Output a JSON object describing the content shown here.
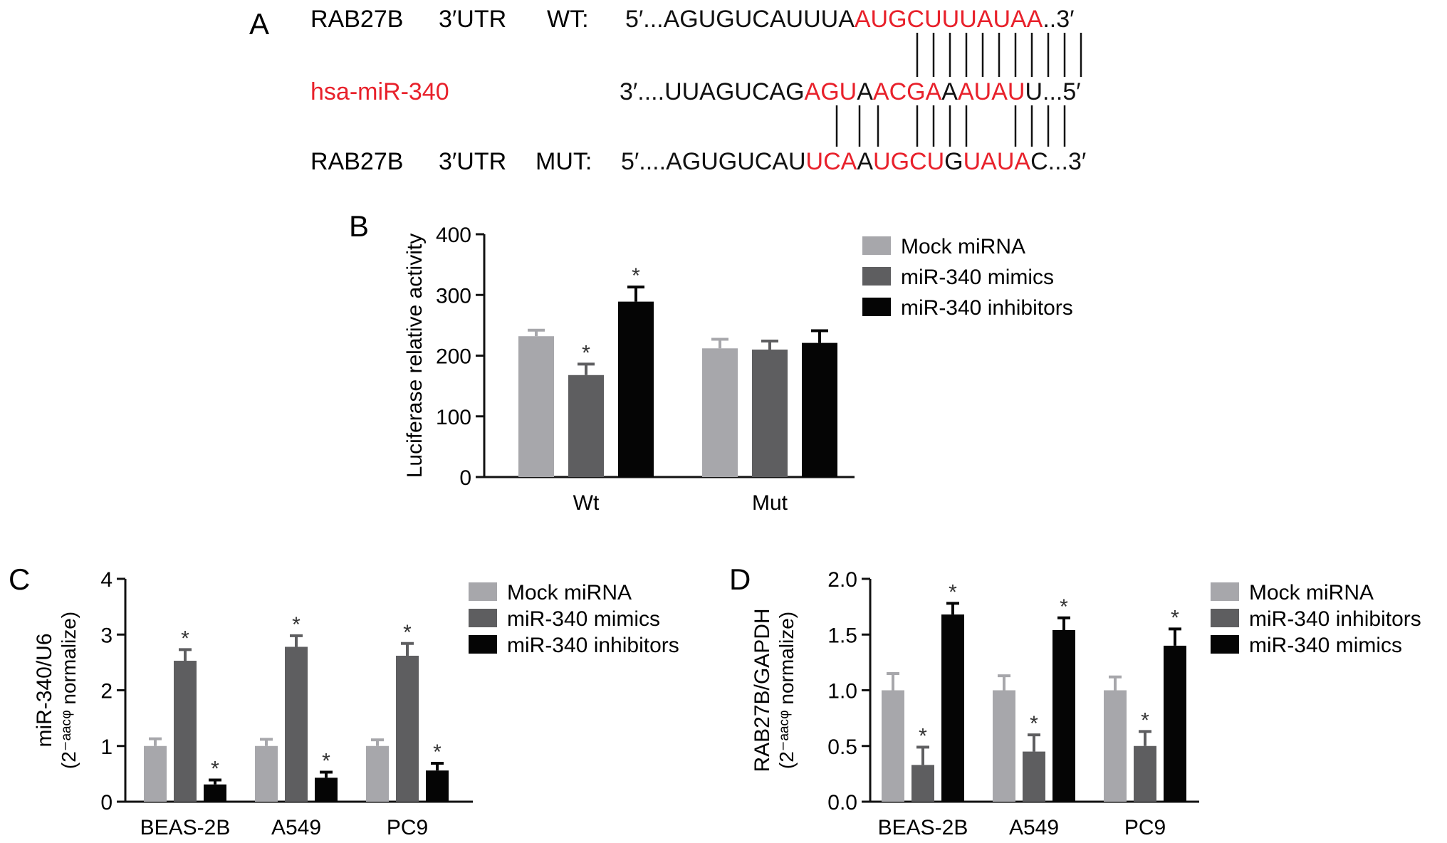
{
  "panel_a": {
    "letter": "A",
    "wt_label": {
      "gene": "RAB27B",
      "region": "3′UTR",
      "kind": "WT:"
    },
    "mirna_label": "hsa-miR-340",
    "mut_label": {
      "gene": "RAB27B",
      "region": "3′UTR",
      "kind": "MUT:"
    },
    "wt_seq": [
      {
        "t": "5′...AGUGUCAUUUA",
        "red": false
      },
      {
        "t": "AUGCUUUAUAA",
        "red": true
      },
      {
        "t": "..3′",
        "red": false
      }
    ],
    "mir_seq": [
      {
        "t": "3′....UUAGUCAG",
        "red": false
      },
      {
        "t": "AGU",
        "red": true
      },
      {
        "t": "A",
        "red": false
      },
      {
        "t": "ACGA",
        "red": true
      },
      {
        "t": "A",
        "red": false
      },
      {
        "t": "AUAU",
        "red": true
      },
      {
        "t": "U...5′",
        "red": false
      }
    ],
    "mut_seq": [
      {
        "t": "5′....AGUGUCAU",
        "red": false
      },
      {
        "t": "UCA",
        "red": true
      },
      {
        "t": "A",
        "red": false
      },
      {
        "t": "UGCU",
        "red": true
      },
      {
        "t": "G",
        "red": false
      },
      {
        "t": "UAUA",
        "red": true
      },
      {
        "t": "C...3′",
        "red": false
      }
    ],
    "colors": {
      "red": "#e8212b",
      "black": "#111111"
    }
  },
  "chart_data": [
    {
      "panel": "B",
      "type": "bar",
      "ylabel": "Luciferase relative activity",
      "ylim": [
        0,
        400
      ],
      "yticks": [
        "0",
        "100",
        "200",
        "300",
        "400"
      ],
      "categories": [
        "Wt",
        "Mut"
      ],
      "series": [
        {
          "name": "Mock miRNA",
          "color": "#a7a7ab",
          "values": [
            232,
            212
          ],
          "errors": [
            10,
            15
          ],
          "sig": [
            false,
            false
          ]
        },
        {
          "name": "miR-340 mimics",
          "color": "#5e5e60",
          "values": [
            168,
            210
          ],
          "errors": [
            18,
            14
          ],
          "sig": [
            true,
            false
          ]
        },
        {
          "name": "miR-340 inhibitors",
          "color": "#050505",
          "values": [
            289,
            221
          ],
          "errors": [
            24,
            20
          ],
          "sig": [
            true,
            false
          ]
        }
      ],
      "sig_mark": "*",
      "legend": "right"
    },
    {
      "panel": "C",
      "type": "bar",
      "ylabel": "miR-340/U6",
      "ylabel2": "(2⁻ᵃᵃᶜᵠ normalize)",
      "ylim": [
        0,
        4
      ],
      "yticks": [
        "0",
        "1",
        "2",
        "3",
        "4"
      ],
      "categories": [
        "BEAS-2B",
        "A549",
        "PC9"
      ],
      "series": [
        {
          "name": "Mock miRNA",
          "color": "#a7a7ab",
          "values": [
            1.0,
            1.0,
            1.0
          ],
          "errors": [
            0.13,
            0.12,
            0.11
          ],
          "sig": [
            false,
            false,
            false
          ]
        },
        {
          "name": "miR-340 mimics",
          "color": "#5e5e60",
          "values": [
            2.53,
            2.78,
            2.62
          ],
          "errors": [
            0.2,
            0.2,
            0.22
          ],
          "sig": [
            true,
            true,
            true
          ]
        },
        {
          "name": "miR-340 inhibitors",
          "color": "#050505",
          "values": [
            0.31,
            0.43,
            0.56
          ],
          "errors": [
            0.08,
            0.1,
            0.13
          ],
          "sig": [
            true,
            true,
            true
          ]
        }
      ],
      "sig_mark": "*",
      "legend": "right"
    },
    {
      "panel": "D",
      "type": "bar",
      "ylabel": "RAB27B/GAPDH",
      "ylabel2": "(2⁻ᵃᵃᶜᵠ normalize)",
      "ylim": [
        0,
        2.0
      ],
      "yticks": [
        "0.0",
        "0.5",
        "1.0",
        "1.5",
        "2.0"
      ],
      "categories": [
        "BEAS-2B",
        "A549",
        "PC9"
      ],
      "series": [
        {
          "name": "Mock miRNA",
          "color": "#a7a7ab",
          "values": [
            1.0,
            1.0,
            1.0
          ],
          "errors": [
            0.15,
            0.13,
            0.12
          ],
          "sig": [
            false,
            false,
            false
          ]
        },
        {
          "name": "miR-340 inhibitors",
          "color": "#5e5e60",
          "values": [
            0.33,
            0.45,
            0.5
          ],
          "errors": [
            0.16,
            0.15,
            0.13
          ],
          "sig": [
            true,
            true,
            true
          ]
        },
        {
          "name": "miR-340 mimics",
          "color": "#050505",
          "values": [
            1.68,
            1.54,
            1.4
          ],
          "errors": [
            0.1,
            0.11,
            0.15
          ],
          "sig": [
            true,
            true,
            true
          ]
        }
      ],
      "sig_mark": "*",
      "legend": "right"
    }
  ]
}
